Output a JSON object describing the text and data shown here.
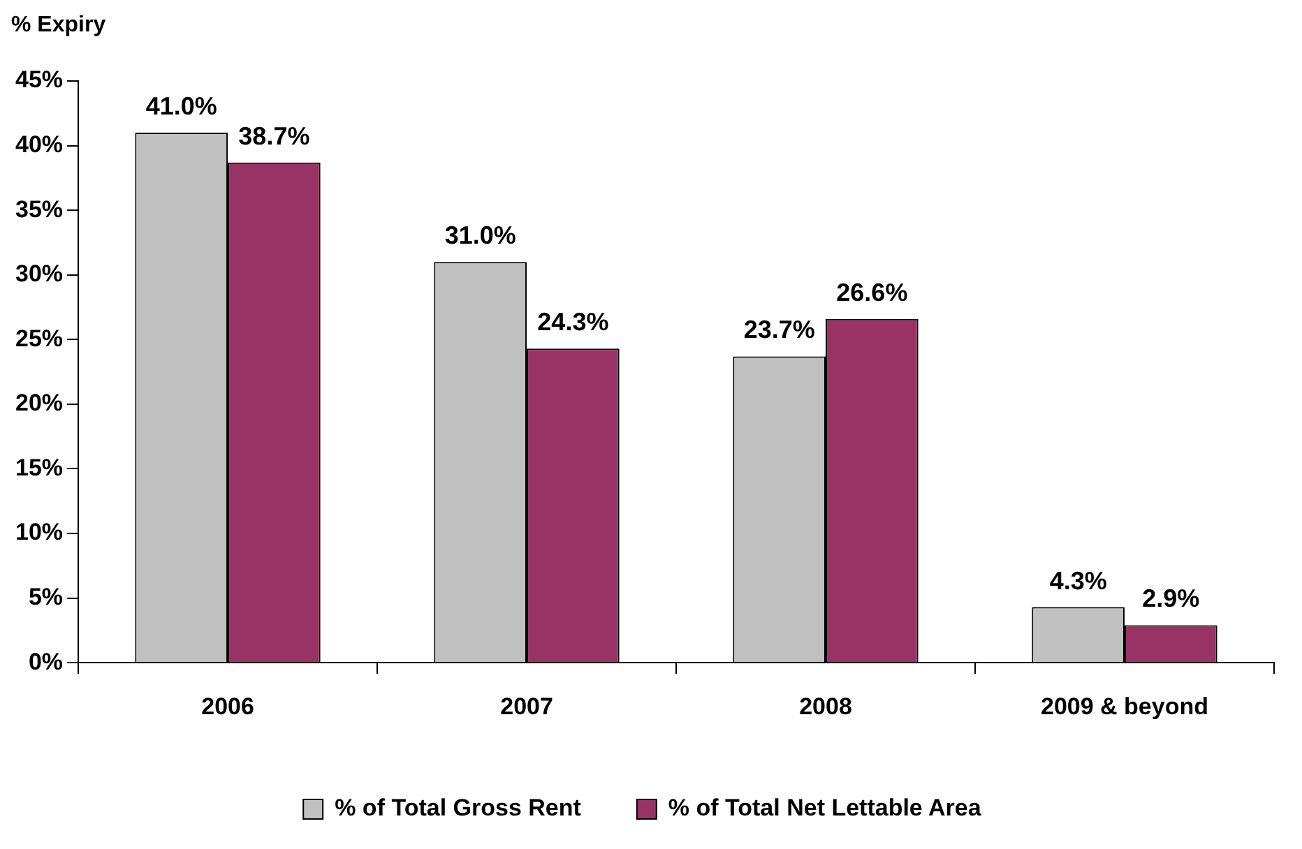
{
  "chart_data": {
    "type": "bar",
    "ylabel": "% Expiry",
    "categories": [
      "2006",
      "2007",
      "2008",
      "2009 & beyond"
    ],
    "series": [
      {
        "name": "% of Total Gross Rent",
        "color": "#c0c0c0",
        "values": [
          41.0,
          31.0,
          23.7,
          4.3
        ],
        "value_labels": [
          "41.0%",
          "31.0%",
          "23.7%",
          "4.3%"
        ]
      },
      {
        "name": "% of Total Net Lettable Area",
        "color": "#993366",
        "values": [
          38.7,
          24.3,
          26.6,
          2.9
        ],
        "value_labels": [
          "38.7%",
          "24.3%",
          "26.6%",
          "2.9%"
        ]
      }
    ],
    "ylim": [
      0,
      45
    ],
    "yticks": [
      {
        "value": 0,
        "label": "0%"
      },
      {
        "value": 5,
        "label": "5%"
      },
      {
        "value": 10,
        "label": "10%"
      },
      {
        "value": 15,
        "label": "15%"
      },
      {
        "value": 20,
        "label": "20%"
      },
      {
        "value": 25,
        "label": "25%"
      },
      {
        "value": 30,
        "label": "30%"
      },
      {
        "value": 35,
        "label": "35%"
      },
      {
        "value": 40,
        "label": "40%"
      },
      {
        "value": 45,
        "label": "45%"
      }
    ],
    "grid": false,
    "legend": "bottom"
  }
}
